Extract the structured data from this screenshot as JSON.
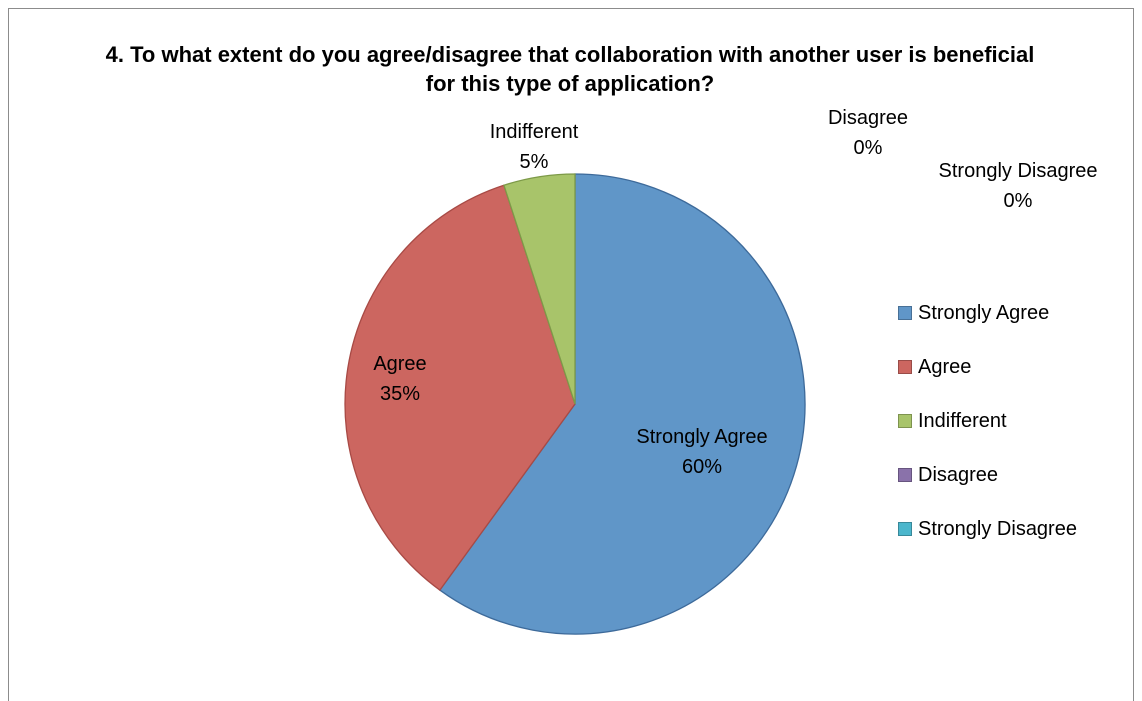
{
  "chart_data": {
    "type": "pie",
    "title": "4. To what extent do you agree/disagree that collaboration with another user is beneficial for this type of application?",
    "slices": [
      {
        "label": "Strongly Agree",
        "value": 60,
        "pct_label": "60%",
        "color": "#6096c8"
      },
      {
        "label": "Agree",
        "value": 35,
        "pct_label": "35%",
        "color": "#cc6660"
      },
      {
        "label": "Indifferent",
        "value": 5,
        "pct_label": "5%",
        "color": "#a8c46a"
      },
      {
        "label": "Disagree",
        "value": 0,
        "pct_label": "0%",
        "color": "#8a72aa"
      },
      {
        "label": "Strongly Disagree",
        "value": 0,
        "pct_label": "0%",
        "color": "#4bb6cc"
      }
    ],
    "legend_position": "right"
  }
}
